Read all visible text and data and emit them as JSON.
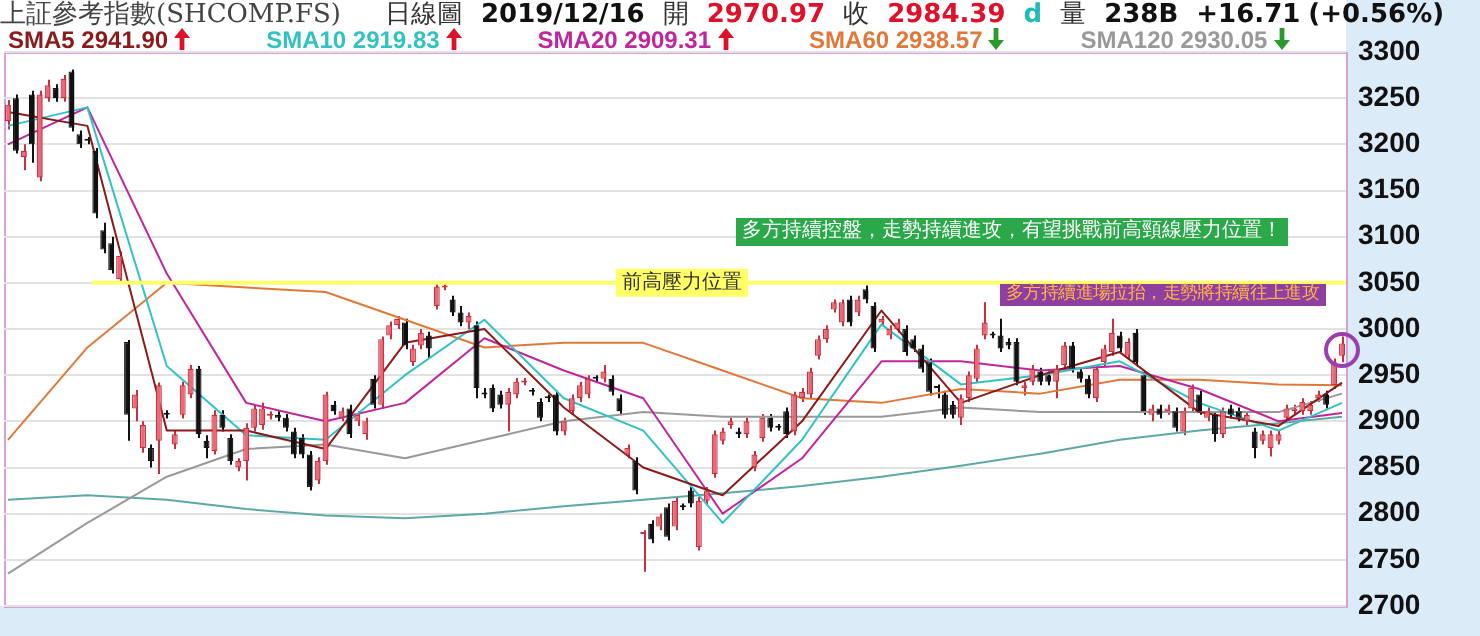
{
  "chart_data": {
    "type": "candlestick",
    "title": "上証參考指數(SHCOMP.FS)",
    "subtitle": "日線圖 2019/12/16 開 2970.97 收 2984.39 d 量 238B +16.71 (+0.56%)",
    "categories": [
      null,
      null,
      null,
      null,
      null,
      null,
      null,
      null,
      null,
      null,
      null,
      null,
      null,
      null,
      null,
      null,
      null,
      null,
      null,
      null,
      null,
      null,
      null,
      null,
      null,
      null,
      null,
      null,
      null,
      null,
      null,
      null,
      null,
      null,
      null,
      null,
      null,
      null,
      null,
      null,
      null,
      null,
      null,
      null,
      null,
      null,
      null,
      null,
      null,
      null,
      null,
      null,
      null,
      null,
      null,
      null,
      null,
      null,
      null,
      null,
      null,
      null,
      null,
      null,
      null,
      null,
      null,
      null,
      null,
      null,
      null,
      null,
      null,
      null,
      null,
      null,
      null,
      null,
      null,
      null,
      null,
      null,
      null,
      null,
      null,
      null,
      null,
      null,
      null,
      null,
      null,
      null,
      null,
      null,
      null,
      null,
      null,
      null,
      null,
      null,
      null,
      null,
      null,
      null,
      null,
      null,
      null,
      null,
      null,
      null,
      null,
      null,
      null,
      null,
      null,
      null,
      null,
      null,
      null,
      null,
      null,
      null,
      null,
      null,
      null,
      null,
      null,
      null,
      null,
      null,
      null,
      null,
      null,
      null,
      null,
      null,
      null,
      null,
      null,
      null,
      null,
      null,
      null,
      null,
      null,
      null,
      null,
      null,
      null,
      null,
      null,
      null,
      null,
      null,
      null,
      null,
      null,
      null,
      null,
      null,
      null,
      null,
      null,
      null,
      null,
      null,
      null,
      null,
      null
    ],
    "ohlc": [
      [
        3225,
        3248,
        3216,
        3243
      ],
      [
        3250,
        3254,
        3190,
        3193
      ],
      [
        3186,
        3200,
        3172,
        3193
      ],
      [
        3254,
        3258,
        3180,
        3200
      ],
      [
        3164,
        3258,
        3160,
        3254
      ],
      [
        3250,
        3270,
        3246,
        3264
      ],
      [
        3261,
        3265,
        3246,
        3250
      ],
      [
        3250,
        3275,
        3246,
        3271
      ],
      [
        3279,
        3281,
        3214,
        3218
      ],
      [
        3211,
        3215,
        3196,
        3200
      ],
      [
        3205,
        3208,
        3200,
        3204
      ],
      [
        3193,
        3196,
        3120,
        3125
      ],
      [
        3107,
        3115,
        3082,
        3086
      ],
      [
        3093,
        3100,
        3060,
        3064
      ],
      [
        3054,
        3084,
        3050,
        3079
      ],
      [
        2986,
        2988,
        2879,
        2907
      ],
      [
        2914,
        2934,
        2900,
        2929
      ],
      [
        2871,
        2900,
        2866,
        2896
      ],
      [
        2871,
        2875,
        2850,
        2857
      ],
      [
        2879,
        2942,
        2843,
        2939
      ],
      [
        2908,
        2912,
        2903,
        2907
      ],
      [
        2875,
        2890,
        2870,
        2886
      ],
      [
        2907,
        2943,
        2903,
        2939
      ],
      [
        2929,
        2961,
        2925,
        2957
      ],
      [
        2957,
        2960,
        2882,
        2886
      ],
      [
        2879,
        2885,
        2860,
        2871
      ],
      [
        2868,
        2912,
        2864,
        2907
      ],
      [
        2907,
        2912,
        2889,
        2893
      ],
      [
        2882,
        2886,
        2853,
        2857
      ],
      [
        2850,
        2860,
        2846,
        2857
      ],
      [
        2857,
        2898,
        2836,
        2893
      ],
      [
        2893,
        2918,
        2889,
        2914
      ],
      [
        2896,
        2920,
        2891,
        2914
      ],
      [
        2906,
        2911,
        2902,
        2907
      ],
      [
        2907,
        2911,
        2900,
        2904
      ],
      [
        2904,
        2908,
        2889,
        2893
      ],
      [
        2889,
        2893,
        2860,
        2864
      ],
      [
        2882,
        2886,
        2860,
        2864
      ],
      [
        2864,
        2868,
        2825,
        2829
      ],
      [
        2836,
        2861,
        2832,
        2857
      ],
      [
        2857,
        2932,
        2853,
        2929
      ],
      [
        2918,
        2922,
        2907,
        2911
      ],
      [
        2904,
        2915,
        2900,
        2911
      ],
      [
        2914,
        2918,
        2882,
        2886
      ],
      [
        2900,
        2911,
        2895,
        2907
      ],
      [
        2886,
        2904,
        2880,
        2900
      ],
      [
        2946,
        2950,
        2914,
        2918
      ],
      [
        2918,
        2992,
        2914,
        2989
      ],
      [
        2993,
        3008,
        2989,
        3004
      ],
      [
        3004,
        3014,
        3000,
        3011
      ],
      [
        3007,
        3011,
        2978,
        2982
      ],
      [
        2964,
        2983,
        2960,
        2979
      ],
      [
        2982,
        3000,
        2978,
        2996
      ],
      [
        2993,
        2997,
        2968,
        2979
      ],
      [
        3025,
        3050,
        3021,
        3046
      ],
      [
        3045,
        3049,
        3042,
        3046
      ],
      [
        3032,
        3036,
        3014,
        3018
      ],
      [
        3018,
        3025,
        3003,
        3007
      ],
      [
        3007,
        3018,
        3000,
        3014
      ],
      [
        3004,
        3008,
        2925,
        2936
      ],
      [
        2930,
        2936,
        2925,
        2929
      ],
      [
        2936,
        2940,
        2910,
        2914
      ],
      [
        2929,
        2933,
        2914,
        2918
      ],
      [
        2918,
        2936,
        2889,
        2932
      ],
      [
        2929,
        2947,
        2925,
        2943
      ],
      [
        2942,
        2947,
        2939,
        2943
      ],
      [
        2933,
        2936,
        2928,
        2932
      ],
      [
        2921,
        2925,
        2900,
        2904
      ],
      [
        2926,
        2929,
        2921,
        2925
      ],
      [
        2929,
        2933,
        2885,
        2889
      ],
      [
        2889,
        2904,
        2885,
        2900
      ],
      [
        2911,
        2929,
        2907,
        2925
      ],
      [
        2925,
        2943,
        2921,
        2939
      ],
      [
        2929,
        2950,
        2925,
        2946
      ],
      [
        2947,
        2950,
        2943,
        2946
      ],
      [
        2946,
        2961,
        2942,
        2954
      ],
      [
        2946,
        2950,
        2928,
        2932
      ],
      [
        2925,
        2929,
        2907,
        2911
      ],
      [
        2864,
        2875,
        2860,
        2871
      ],
      [
        2857,
        2861,
        2821,
        2825
      ],
      [
        2778,
        2782,
        2737,
        2780
      ],
      [
        2789,
        2793,
        2768,
        2772
      ],
      [
        2786,
        2800,
        2782,
        2797
      ],
      [
        2807,
        2811,
        2771,
        2775
      ],
      [
        2786,
        2818,
        2782,
        2814
      ],
      [
        2808,
        2811,
        2804,
        2807
      ],
      [
        2825,
        2829,
        2807,
        2811
      ],
      [
        2764,
        2818,
        2760,
        2814
      ],
      [
        2814,
        2829,
        2810,
        2825
      ],
      [
        2843,
        2890,
        2839,
        2886
      ],
      [
        2879,
        2893,
        2875,
        2889
      ],
      [
        2896,
        2904,
        2892,
        2900
      ],
      [
        2889,
        2893,
        2882,
        2886
      ],
      [
        2886,
        2904,
        2882,
        2900
      ],
      [
        2850,
        2868,
        2846,
        2864
      ],
      [
        2882,
        2908,
        2878,
        2904
      ],
      [
        2904,
        2908,
        2889,
        2893
      ],
      [
        2894,
        2897,
        2890,
        2893
      ],
      [
        2911,
        2915,
        2882,
        2886
      ],
      [
        2889,
        2932,
        2885,
        2929
      ],
      [
        2925,
        2936,
        2921,
        2932
      ],
      [
        2929,
        2958,
        2925,
        2954
      ],
      [
        2971,
        2993,
        2967,
        2989
      ],
      [
        2989,
        3004,
        2985,
        3000
      ],
      [
        3021,
        3032,
        3018,
        3029
      ],
      [
        3007,
        3032,
        3003,
        3029
      ],
      [
        3032,
        3036,
        3003,
        3007
      ],
      [
        3018,
        3036,
        3014,
        3032
      ],
      [
        3043,
        3047,
        3028,
        3032
      ],
      [
        3025,
        3029,
        2975,
        2979
      ],
      [
        3007,
        3014,
        3003,
        3011
      ],
      [
        2993,
        3004,
        2989,
        3000
      ],
      [
        3000,
        3011,
        2996,
        3007
      ],
      [
        3000,
        3004,
        2971,
        2975
      ],
      [
        2989,
        2993,
        2975,
        2979
      ],
      [
        2979,
        2983,
        2953,
        2957
      ],
      [
        2964,
        2968,
        2928,
        2932
      ],
      [
        2937,
        2940,
        2925,
        2936
      ],
      [
        2929,
        2933,
        2903,
        2907
      ],
      [
        2918,
        2922,
        2903,
        2907
      ],
      [
        2904,
        2929,
        2896,
        2925
      ],
      [
        2925,
        2954,
        2921,
        2950
      ],
      [
        2946,
        2983,
        2942,
        2979
      ],
      [
        2993,
        3029,
        2989,
        3007
      ],
      [
        2994,
        2997,
        2990,
        2993
      ],
      [
        2993,
        3011,
        2975,
        2979
      ],
      [
        2986,
        2990,
        2978,
        2982
      ],
      [
        2986,
        2990,
        2939,
        2943
      ],
      [
        2936,
        2943,
        2928,
        2939
      ],
      [
        2943,
        2961,
        2939,
        2957
      ],
      [
        2954,
        2958,
        2939,
        2943
      ],
      [
        2950,
        2954,
        2939,
        2943
      ],
      [
        2943,
        2961,
        2925,
        2957
      ],
      [
        2961,
        2986,
        2957,
        2982
      ],
      [
        2982,
        2986,
        2953,
        2957
      ],
      [
        2954,
        2958,
        2942,
        2946
      ],
      [
        2946,
        2950,
        2925,
        2929
      ],
      [
        2925,
        2961,
        2921,
        2957
      ],
      [
        2964,
        2983,
        2960,
        2979
      ],
      [
        2975,
        3011,
        2971,
        2996
      ],
      [
        2993,
        2997,
        2975,
        2979
      ],
      [
        2971,
        2990,
        2967,
        2986
      ],
      [
        2996,
        3000,
        2960,
        2964
      ],
      [
        2950,
        2954,
        2907,
        2911
      ],
      [
        2907,
        2918,
        2900,
        2914
      ],
      [
        2914,
        2918,
        2903,
        2907
      ],
      [
        2911,
        2918,
        2907,
        2914
      ],
      [
        2911,
        2915,
        2889,
        2893
      ],
      [
        2889,
        2915,
        2885,
        2911
      ],
      [
        2914,
        2940,
        2910,
        2936
      ],
      [
        2929,
        2933,
        2907,
        2911
      ],
      [
        2904,
        2915,
        2900,
        2911
      ],
      [
        2907,
        2911,
        2878,
        2886
      ],
      [
        2886,
        2915,
        2882,
        2911
      ],
      [
        2914,
        2918,
        2903,
        2907
      ],
      [
        2911,
        2915,
        2900,
        2904
      ],
      [
        2900,
        2911,
        2896,
        2907
      ],
      [
        2889,
        2893,
        2860,
        2871
      ],
      [
        2879,
        2890,
        2875,
        2886
      ],
      [
        2871,
        2890,
        2862,
        2886
      ],
      [
        2879,
        2890,
        2875,
        2886
      ],
      [
        2904,
        2918,
        2900,
        2914
      ],
      [
        2911,
        2918,
        2907,
        2914
      ],
      [
        2911,
        2925,
        2907,
        2921
      ],
      [
        2911,
        2922,
        2907,
        2918
      ],
      [
        2925,
        2933,
        2921,
        2929
      ],
      [
        2929,
        2933,
        2914,
        2918
      ],
      [
        2939,
        2968,
        2935,
        2964
      ],
      [
        2970.97,
        2992,
        2964,
        2984.39
      ]
    ],
    "series": [
      {
        "type": "line",
        "name": "SMA5",
        "color": "#8b1a1a",
        "values": [
          3235,
          null,
          null,
          null,
          null,
          null,
          null,
          null,
          null,
          null,
          3220,
          null,
          null,
          null,
          null,
          null,
          null,
          null,
          null,
          null,
          2890,
          null,
          null,
          null,
          null,
          null,
          null,
          null,
          null,
          null,
          2890,
          null,
          null,
          null,
          null,
          null,
          null,
          null,
          null,
          null,
          2870,
          null,
          null,
          null,
          null,
          null,
          null,
          null,
          null,
          null,
          2985,
          null,
          null,
          null,
          null,
          null,
          null,
          null,
          null,
          null,
          3000,
          null,
          null,
          null,
          null,
          null,
          null,
          null,
          null,
          null,
          2915,
          null,
          null,
          null,
          null,
          null,
          null,
          null,
          null,
          null,
          2850,
          null,
          null,
          null,
          null,
          null,
          null,
          null,
          null,
          null,
          2820,
          null,
          null,
          null,
          null,
          null,
          null,
          null,
          null,
          null,
          2900,
          null,
          null,
          null,
          null,
          null,
          null,
          null,
          null,
          null,
          3020,
          null,
          null,
          null,
          null,
          null,
          null,
          null,
          null,
          null,
          2920,
          null,
          null,
          null,
          null,
          null,
          null,
          null,
          null,
          null,
          2950,
          null,
          null,
          null,
          null,
          null,
          null,
          null,
          null,
          null,
          2975,
          null,
          null,
          null,
          null,
          null,
          null,
          null,
          null,
          null,
          2910,
          null,
          null,
          null,
          null,
          null,
          null,
          null,
          null,
          null,
          2895,
          null,
          null,
          null,
          null,
          null,
          null,
          null,
          2942
        ]
      },
      {
        "type": "line",
        "name": "SMA10",
        "color": "#33c2c2",
        "values": [
          3220,
          null,
          null,
          null,
          null,
          null,
          null,
          null,
          null,
          null,
          3240,
          null,
          null,
          null,
          null,
          null,
          null,
          null,
          null,
          null,
          2960,
          null,
          null,
          null,
          null,
          null,
          null,
          null,
          null,
          null,
          2885,
          null,
          null,
          null,
          null,
          null,
          null,
          null,
          null,
          null,
          2880,
          null,
          null,
          null,
          null,
          null,
          null,
          null,
          null,
          null,
          2950,
          null,
          null,
          null,
          null,
          null,
          null,
          null,
          null,
          null,
          3010,
          null,
          null,
          null,
          null,
          null,
          null,
          null,
          null,
          null,
          2925,
          null,
          null,
          null,
          null,
          null,
          null,
          null,
          null,
          null,
          2890,
          null,
          null,
          null,
          null,
          null,
          null,
          null,
          null,
          null,
          2790,
          null,
          null,
          null,
          null,
          null,
          null,
          null,
          null,
          null,
          2880,
          null,
          null,
          null,
          null,
          null,
          null,
          null,
          null,
          null,
          3005,
          null,
          null,
          null,
          null,
          null,
          null,
          null,
          null,
          null,
          2940,
          null,
          null,
          null,
          null,
          null,
          null,
          null,
          null,
          null,
          2950,
          null,
          null,
          null,
          null,
          null,
          null,
          null,
          null,
          null,
          2965,
          null,
          null,
          null,
          null,
          null,
          null,
          null,
          null,
          null,
          2920,
          null,
          null,
          null,
          null,
          null,
          null,
          null,
          null,
          null,
          2890,
          null,
          null,
          null,
          null,
          null,
          null,
          null,
          2920
        ]
      },
      {
        "type": "line",
        "name": "SMA20",
        "color": "#c0269b",
        "values": [
          3200,
          null,
          null,
          null,
          null,
          null,
          null,
          null,
          null,
          null,
          3240,
          null,
          null,
          null,
          null,
          null,
          null,
          null,
          null,
          null,
          3060,
          null,
          null,
          null,
          null,
          null,
          null,
          null,
          null,
          null,
          2920,
          null,
          null,
          null,
          null,
          null,
          null,
          null,
          null,
          null,
          2900,
          null,
          null,
          null,
          null,
          null,
          null,
          null,
          null,
          null,
          2920,
          null,
          null,
          null,
          null,
          null,
          null,
          null,
          null,
          null,
          2990,
          null,
          null,
          null,
          null,
          null,
          null,
          null,
          null,
          null,
          2955,
          null,
          null,
          null,
          null,
          null,
          null,
          null,
          null,
          null,
          2925,
          null,
          null,
          null,
          null,
          null,
          null,
          null,
          null,
          null,
          2800,
          null,
          null,
          null,
          null,
          null,
          null,
          null,
          null,
          null,
          2860,
          null,
          null,
          null,
          null,
          null,
          null,
          null,
          null,
          null,
          2965,
          null,
          null,
          null,
          null,
          null,
          null,
          null,
          null,
          null,
          2965,
          null,
          null,
          null,
          null,
          null,
          null,
          null,
          null,
          null,
          2955,
          null,
          null,
          null,
          null,
          null,
          null,
          null,
          null,
          null,
          2960,
          null,
          null,
          null,
          null,
          null,
          null,
          null,
          null,
          null,
          2935,
          null,
          null,
          null,
          null,
          null,
          null,
          null,
          null,
          null,
          2900,
          null,
          null,
          null,
          null,
          null,
          null,
          null,
          2909
        ]
      },
      {
        "type": "line",
        "name": "SMA60",
        "color": "#e0783a",
        "values": [
          2880,
          null,
          null,
          null,
          null,
          null,
          null,
          null,
          null,
          null,
          2980,
          null,
          null,
          null,
          null,
          null,
          null,
          null,
          null,
          null,
          3050,
          null,
          null,
          null,
          null,
          null,
          null,
          null,
          null,
          null,
          3045,
          null,
          null,
          null,
          null,
          null,
          null,
          null,
          null,
          null,
          3040,
          null,
          null,
          null,
          null,
          null,
          null,
          null,
          null,
          null,
          3010,
          null,
          null,
          null,
          null,
          null,
          null,
          null,
          null,
          null,
          2980,
          null,
          null,
          null,
          null,
          null,
          null,
          null,
          null,
          null,
          2985,
          null,
          null,
          null,
          null,
          null,
          null,
          null,
          null,
          null,
          2985,
          null,
          null,
          null,
          null,
          null,
          null,
          null,
          null,
          null,
          2955,
          null,
          null,
          null,
          null,
          null,
          null,
          null,
          null,
          null,
          2925,
          null,
          null,
          null,
          null,
          null,
          null,
          null,
          null,
          null,
          2920,
          null,
          null,
          null,
          null,
          null,
          null,
          null,
          null,
          null,
          2935,
          null,
          null,
          null,
          null,
          null,
          null,
          null,
          null,
          null,
          2930,
          null,
          null,
          null,
          null,
          null,
          null,
          null,
          null,
          null,
          2945,
          null,
          null,
          null,
          null,
          null,
          null,
          null,
          null,
          null,
          2945,
          null,
          null,
          null,
          null,
          null,
          null,
          null,
          null,
          null,
          2940,
          null,
          null,
          null,
          null,
          null,
          null,
          null,
          2939
        ]
      },
      {
        "type": "line",
        "name": "SMA120",
        "color": "#999999",
        "values": [
          2735,
          null,
          null,
          null,
          null,
          null,
          null,
          null,
          null,
          null,
          2790,
          null,
          null,
          null,
          null,
          null,
          null,
          null,
          null,
          null,
          2840,
          null,
          null,
          null,
          null,
          null,
          null,
          null,
          null,
          null,
          2870,
          null,
          null,
          null,
          null,
          null,
          null,
          null,
          null,
          null,
          2875,
          null,
          null,
          null,
          null,
          null,
          null,
          null,
          null,
          null,
          2860,
          null,
          null,
          null,
          null,
          null,
          null,
          null,
          null,
          null,
          2880,
          null,
          null,
          null,
          null,
          null,
          null,
          null,
          null,
          null,
          2900,
          null,
          null,
          null,
          null,
          null,
          null,
          null,
          null,
          null,
          2910,
          null,
          null,
          null,
          null,
          null,
          null,
          null,
          null,
          null,
          2905,
          null,
          null,
          null,
          null,
          null,
          null,
          null,
          null,
          null,
          2905,
          null,
          null,
          null,
          null,
          null,
          null,
          null,
          null,
          null,
          2905,
          null,
          null,
          null,
          null,
          null,
          null,
          null,
          null,
          null,
          2915,
          null,
          null,
          null,
          null,
          null,
          null,
          null,
          null,
          null,
          2910,
          null,
          null,
          null,
          null,
          null,
          null,
          null,
          null,
          null,
          2910,
          null,
          null,
          null,
          null,
          null,
          null,
          null,
          null,
          null,
          2910,
          null,
          null,
          null,
          null,
          null,
          null,
          null,
          null,
          null,
          2910,
          null,
          null,
          null,
          null,
          null,
          null,
          null,
          2930
        ]
      },
      {
        "type": "line",
        "color": "#5fa8a8",
        "values": [
          2815,
          null,
          null,
          null,
          null,
          null,
          null,
          null,
          null,
          null,
          2820,
          null,
          null,
          null,
          null,
          null,
          null,
          null,
          null,
          null,
          2815,
          null,
          null,
          null,
          null,
          null,
          null,
          null,
          null,
          null,
          2805,
          null,
          null,
          null,
          null,
          null,
          null,
          null,
          null,
          null,
          2798,
          null,
          null,
          null,
          null,
          null,
          null,
          null,
          null,
          null,
          2795,
          null,
          null,
          null,
          null,
          null,
          null,
          null,
          null,
          null,
          2800,
          null,
          null,
          null,
          null,
          null,
          null,
          null,
          null,
          null,
          2808,
          null,
          null,
          null,
          null,
          null,
          null,
          null,
          null,
          null,
          2815,
          null,
          null,
          null,
          null,
          null,
          null,
          null,
          null,
          null,
          2822,
          null,
          null,
          null,
          null,
          null,
          null,
          null,
          null,
          null,
          2830,
          null,
          null,
          null,
          null,
          null,
          null,
          null,
          null,
          null,
          2840,
          null,
          null,
          null,
          null,
          null,
          null,
          null,
          null,
          null,
          2852,
          null,
          null,
          null,
          null,
          null,
          null,
          null,
          null,
          null,
          2865,
          null,
          null,
          null,
          null,
          null,
          null,
          null,
          null,
          null,
          2880,
          null,
          null,
          null,
          null,
          null,
          null,
          null,
          null,
          null,
          2890,
          null,
          null,
          null,
          null,
          null,
          null,
          null,
          null,
          null,
          2898,
          null,
          null,
          null,
          null,
          null,
          null,
          null,
          2905
        ]
      }
    ],
    "annotations": [
      "多方持續控盤，走勢持續進攻，有望挑戰前高頸線壓力位置！",
      "多方持續進場拉抬，走勢將持續往上進攻",
      "2941.90",
      "2919.83",
      "2909.31",
      "2938.57",
      "2930.05"
    ],
    "ref_lines": [
      {
        "axis": "y",
        "value": 3050,
        "label": "前高壓力位置",
        "color": "#ffff66"
      }
    ],
    "ylim": [
      2700,
      3300
    ],
    "yticks": [
      2700,
      2750,
      2800,
      2850,
      2900,
      2950,
      3000,
      3050,
      3100,
      3150,
      3200,
      3250,
      3300
    ],
    "grid": "y",
    "legend": "top left",
    "tick_labels": "y",
    "marker": "none"
  }
}
